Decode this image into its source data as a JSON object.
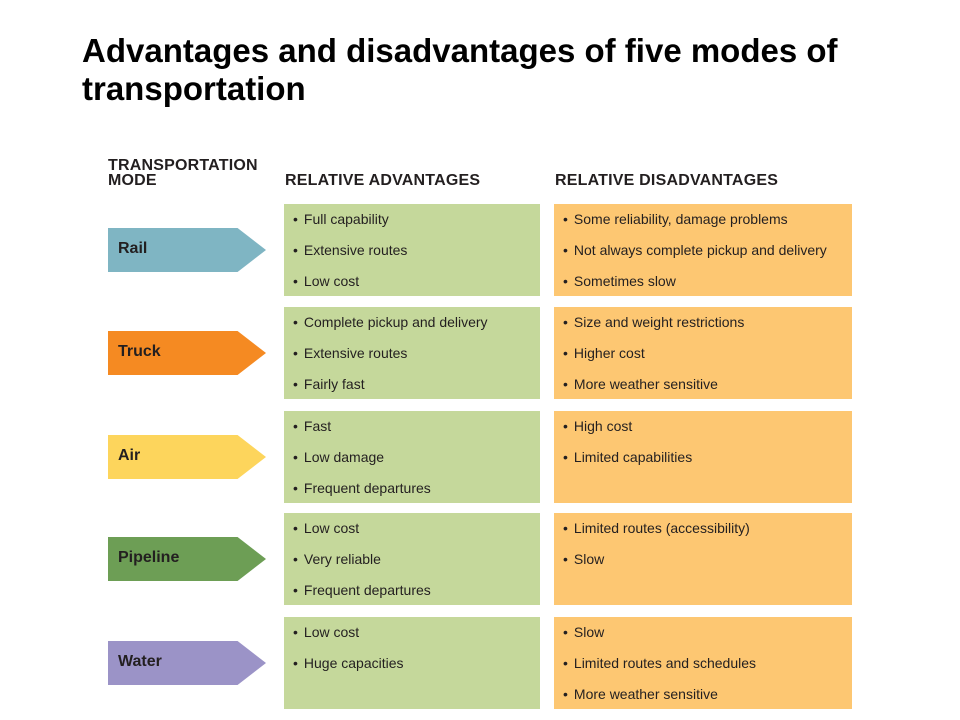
{
  "title": "Advantages and disadvantages of five modes of transportation",
  "headers": {
    "mode": "TRANSPORTATION MODE",
    "advantages": "RELATIVE ADVANTAGES",
    "disadvantages": "RELATIVE DISADVANTAGES"
  },
  "rows": [
    {
      "mode": "Rail",
      "color": "#7fb5c3",
      "advantages": [
        "Full capability",
        "Extensive routes",
        "Low cost"
      ],
      "disadvantages": [
        "Some reliability, damage problems",
        "Not always complete pickup and delivery",
        "Sometimes slow"
      ]
    },
    {
      "mode": "Truck",
      "color": "#f58a22",
      "advantages": [
        "Complete pickup and delivery",
        "Extensive routes",
        "Fairly fast"
      ],
      "disadvantages": [
        "Size and weight restrictions",
        "Higher cost",
        "More weather sensitive"
      ]
    },
    {
      "mode": "Air",
      "color": "#fdd55c",
      "advantages": [
        "Fast",
        "Low damage",
        "Frequent departures"
      ],
      "disadvantages": [
        "High cost",
        "Limited capabilities"
      ]
    },
    {
      "mode": "Pipeline",
      "color": "#6d9e55",
      "advantages": [
        "Low cost",
        "Very reliable",
        "Frequent departures"
      ],
      "disadvantages": [
        "Limited routes (accessibility)",
        "Slow"
      ]
    },
    {
      "mode": "Water",
      "color": "#9b93c7",
      "advantages": [
        "Low cost",
        "Huge capacities"
      ],
      "disadvantages": [
        "Slow",
        "Limited routes and schedules",
        "More weather sensitive"
      ]
    }
  ]
}
